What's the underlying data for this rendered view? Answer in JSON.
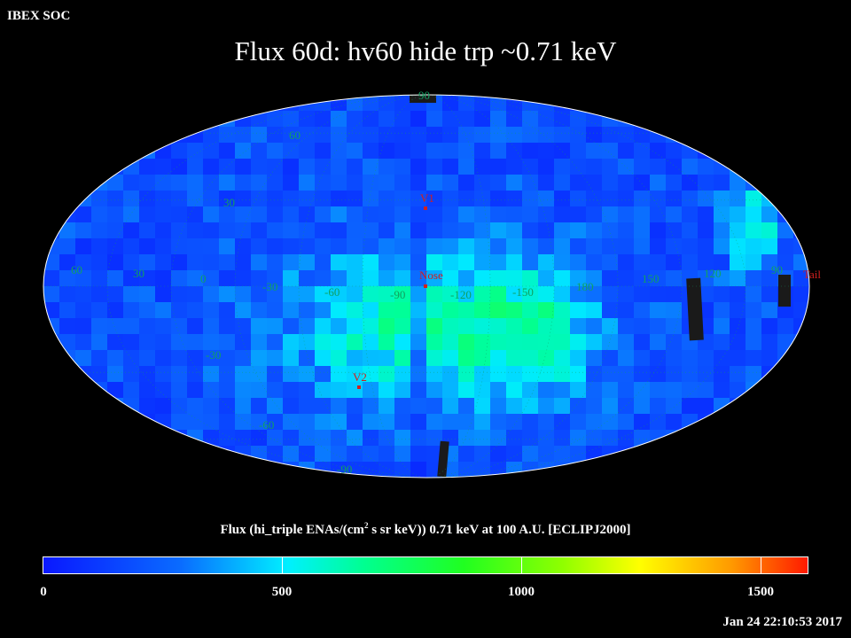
{
  "header": {
    "org": "IBEX SOC",
    "title": "Flux   60d: hv60 hide trp ~0.71 keV"
  },
  "map": {
    "projection": "mollweide",
    "colors": {
      "background": "#000000",
      "outline": "#ffffff",
      "grid": "#10a060",
      "markers": "#d02020",
      "gap": "#1a1a1a"
    },
    "grid_labels": {
      "longitudes": [
        "60",
        "30",
        "0",
        "-30",
        "-60",
        "-90",
        "-120",
        "-150",
        "180",
        "150",
        "120",
        "90"
      ],
      "latitudes_left": [
        "90",
        "60",
        "30",
        "-30",
        "-60",
        "-90"
      ]
    },
    "markers": [
      {
        "name": "V1",
        "label": "V1"
      },
      {
        "name": "Nose",
        "label": "Nose"
      },
      {
        "name": "V2",
        "label": "V2"
      },
      {
        "name": "Tail",
        "label": "Tail"
      }
    ],
    "pixel_grid": "procedurally rendered flux tiles, dominant 0–700 range, blue/cyan/green"
  },
  "colorbar": {
    "title_prefix": "Flux (hi_triple ENAs/(cm",
    "title_sup": "2",
    "title_suffix": " s sr keV))  0.71 keV at 100 A.U. [ECLIPJ2000]",
    "min": 0,
    "max": 1600,
    "ticks": [
      "0",
      "500",
      "1000",
      "1500"
    ],
    "tick_values": [
      0,
      500,
      1000,
      1500
    ]
  },
  "footer": {
    "timestamp": "Jan 24 22:10:53 2017"
  }
}
